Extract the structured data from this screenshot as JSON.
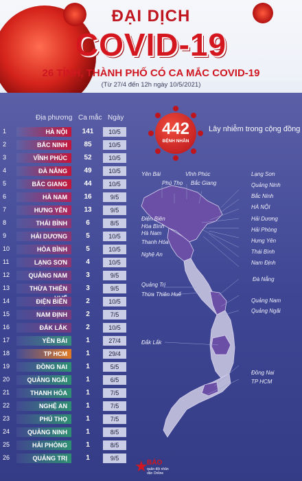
{
  "header": {
    "title_line1": "ĐẠI DỊCH",
    "title_line2": "COVID-19",
    "subtitle": "26 TỈNH, THÀNH PHỐ CÓ CA MẮC COVID-19",
    "date_range": "(Từ 27/4 đến 12h ngày 10/5/2021)"
  },
  "table": {
    "col_location": "Địa phương",
    "col_cases": "Ca mắc",
    "col_date": "Ngày",
    "rows": [
      {
        "n": "1",
        "name": "HÀ NỘI",
        "cases": "141",
        "date": "10/5",
        "color": "#c4163a"
      },
      {
        "n": "2",
        "name": "BẮC NINH",
        "cases": "85",
        "date": "10/5",
        "color": "#c4163a"
      },
      {
        "n": "3",
        "name": "VĨNH PHÚC",
        "cases": "52",
        "date": "10/5",
        "color": "#c4163a"
      },
      {
        "n": "4",
        "name": "ĐÀ NẴNG",
        "cases": "49",
        "date": "10/5",
        "color": "#c4163a"
      },
      {
        "n": "5",
        "name": "BẮC GIANG",
        "cases": "44",
        "date": "10/5",
        "color": "#c4163a"
      },
      {
        "n": "6",
        "name": "HÀ NAM",
        "cases": "16",
        "date": "9/5",
        "color": "#b0245a"
      },
      {
        "n": "7",
        "name": "HƯNG YÊN",
        "cases": "13",
        "date": "9/5",
        "color": "#b0245a"
      },
      {
        "n": "8",
        "name": "THÁI BÌNH",
        "cases": "6",
        "date": "8/5",
        "color": "#8e3672"
      },
      {
        "n": "9",
        "name": "HẢI DƯƠNG",
        "cases": "5",
        "date": "10/5",
        "color": "#8e3672"
      },
      {
        "n": "10",
        "name": "HÒA BÌNH",
        "cases": "5",
        "date": "10/5",
        "color": "#8e3672"
      },
      {
        "n": "11",
        "name": "LẠNG SƠN",
        "cases": "4",
        "date": "10/5",
        "color": "#8e3672"
      },
      {
        "n": "12",
        "name": "QUẢNG NAM",
        "cases": "3",
        "date": "9/5",
        "color": "#7a3b7c"
      },
      {
        "n": "13",
        "name": "THỪA THIÊN HUẾ",
        "cases": "3",
        "date": "9/5",
        "color": "#7a3b7c"
      },
      {
        "n": "14",
        "name": "ĐIỆN BIÊN",
        "cases": "2",
        "date": "10/5",
        "color": "#7a3b7c"
      },
      {
        "n": "15",
        "name": "NAM ĐỊNH",
        "cases": "2",
        "date": "7/5",
        "color": "#7a3b7c"
      },
      {
        "n": "16",
        "name": "ĐẮK LẮK",
        "cases": "2",
        "date": "10/5",
        "color": "#7a3b7c"
      },
      {
        "n": "17",
        "name": "YÊN BÁI",
        "cases": "1",
        "date": "27/4",
        "color": "#3a8f7a"
      },
      {
        "n": "18",
        "name": "TP HCM",
        "cases": "1",
        "date": "29/4",
        "color": "#e07a22"
      },
      {
        "n": "19",
        "name": "ĐỒNG NAI",
        "cases": "1",
        "date": "5/5",
        "color": "#2f8f72"
      },
      {
        "n": "20",
        "name": "QUẢNG NGÃI",
        "cases": "1",
        "date": "6/5",
        "color": "#2f8f72"
      },
      {
        "n": "21",
        "name": "THANH HÓA",
        "cases": "1",
        "date": "7/5",
        "color": "#2f8f72"
      },
      {
        "n": "22",
        "name": "NGHỆ AN",
        "cases": "1",
        "date": "7/5",
        "color": "#2f8f72"
      },
      {
        "n": "23",
        "name": "PHÚ THỌ",
        "cases": "1",
        "date": "7/5",
        "color": "#2f8f72"
      },
      {
        "n": "24",
        "name": "QUẢNG NINH",
        "cases": "1",
        "date": "8/5",
        "color": "#2f8f72"
      },
      {
        "n": "25",
        "name": "HẢI PHÒNG",
        "cases": "1",
        "date": "8/5",
        "color": "#2f8f72"
      },
      {
        "n": "26",
        "name": "QUẢNG TRỊ",
        "cases": "1",
        "date": "9/5",
        "color": "#2f8f72"
      }
    ]
  },
  "badge": {
    "total": "442",
    "unit": "BỆNH NHÂN",
    "caption": "Lây nhiễm trong cộng đồng"
  },
  "map_labels": [
    "Yên Bái",
    "Phú Thọ",
    "Vĩnh Phúc",
    "Bắc Giang",
    "Lạng Sơn",
    "Quảng Ninh",
    "Bắc Ninh",
    "HÀ NỘI",
    "Hải Dương",
    "Hải Phòng",
    "Hưng Yên",
    "Thái Bình",
    "Nam Định",
    "Điện Biên",
    "Hòa Bình",
    "Hà Nam",
    "Thanh Hóa",
    "Nghệ An",
    "Quảng Trị",
    "Thừa Thiên Huế",
    "Đà Nẵng",
    "Quảng Nam",
    "Quảng Ngãi",
    "Đắk Lắk",
    "Đồng Nai",
    "TP HCM"
  ],
  "logo": {
    "name": "BÁO",
    "tagline": "quân đội nhân dân Online"
  },
  "colors": {
    "title_red": "#d4161f",
    "background_blue": "#3f4795",
    "province_purple": "#6b4fa6",
    "date_cell": "#c9cde6"
  }
}
